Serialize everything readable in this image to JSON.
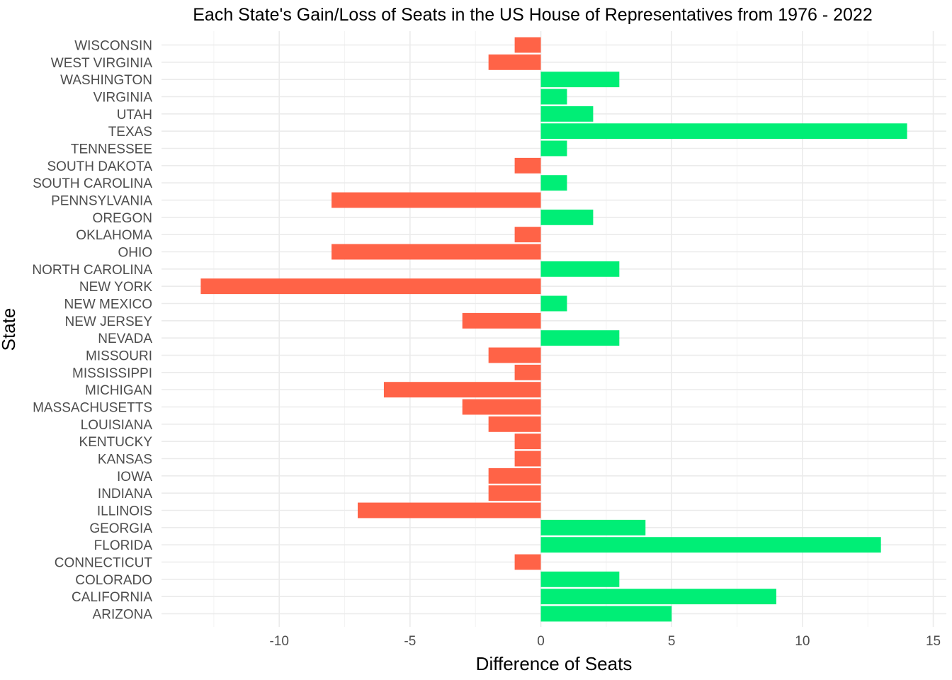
{
  "chart_data": {
    "type": "bar",
    "orientation": "horizontal",
    "title": "Each State's Gain/Loss of Seats in the US House of Representatives from 1976 - 2022",
    "xlabel": "Difference of Seats",
    "ylabel": "State",
    "xlim": [
      -14.5,
      15.5
    ],
    "x_ticks": [
      -10,
      -5,
      0,
      5,
      10,
      15
    ],
    "x_tick_labels": [
      "-10",
      "-5",
      "0",
      "5",
      "10",
      "15"
    ],
    "grid": true,
    "legend": "none",
    "colors": {
      "gain": "#00EE76",
      "loss": "#FF6347"
    },
    "categories": [
      "ARIZONA",
      "CALIFORNIA",
      "COLORADO",
      "CONNECTICUT",
      "FLORIDA",
      "GEORGIA",
      "ILLINOIS",
      "INDIANA",
      "IOWA",
      "KANSAS",
      "KENTUCKY",
      "LOUISIANA",
      "MASSACHUSETTS",
      "MICHIGAN",
      "MISSISSIPPI",
      "MISSOURI",
      "NEVADA",
      "NEW JERSEY",
      "NEW MEXICO",
      "NEW YORK",
      "NORTH CAROLINA",
      "OHIO",
      "OKLAHOMA",
      "OREGON",
      "PENNSYLVANIA",
      "SOUTH CAROLINA",
      "SOUTH DAKOTA",
      "TENNESSEE",
      "TEXAS",
      "UTAH",
      "VIRGINIA",
      "WASHINGTON",
      "WEST VIRGINIA",
      "WISCONSIN"
    ],
    "values": [
      5,
      9,
      3,
      -1,
      13,
      4,
      -7,
      -2,
      -2,
      -1,
      -1,
      -2,
      -3,
      -6,
      -1,
      -2,
      3,
      -3,
      1,
      -13,
      3,
      -8,
      -1,
      2,
      -8,
      1,
      -1,
      1,
      14,
      2,
      1,
      3,
      -2,
      -1
    ]
  }
}
